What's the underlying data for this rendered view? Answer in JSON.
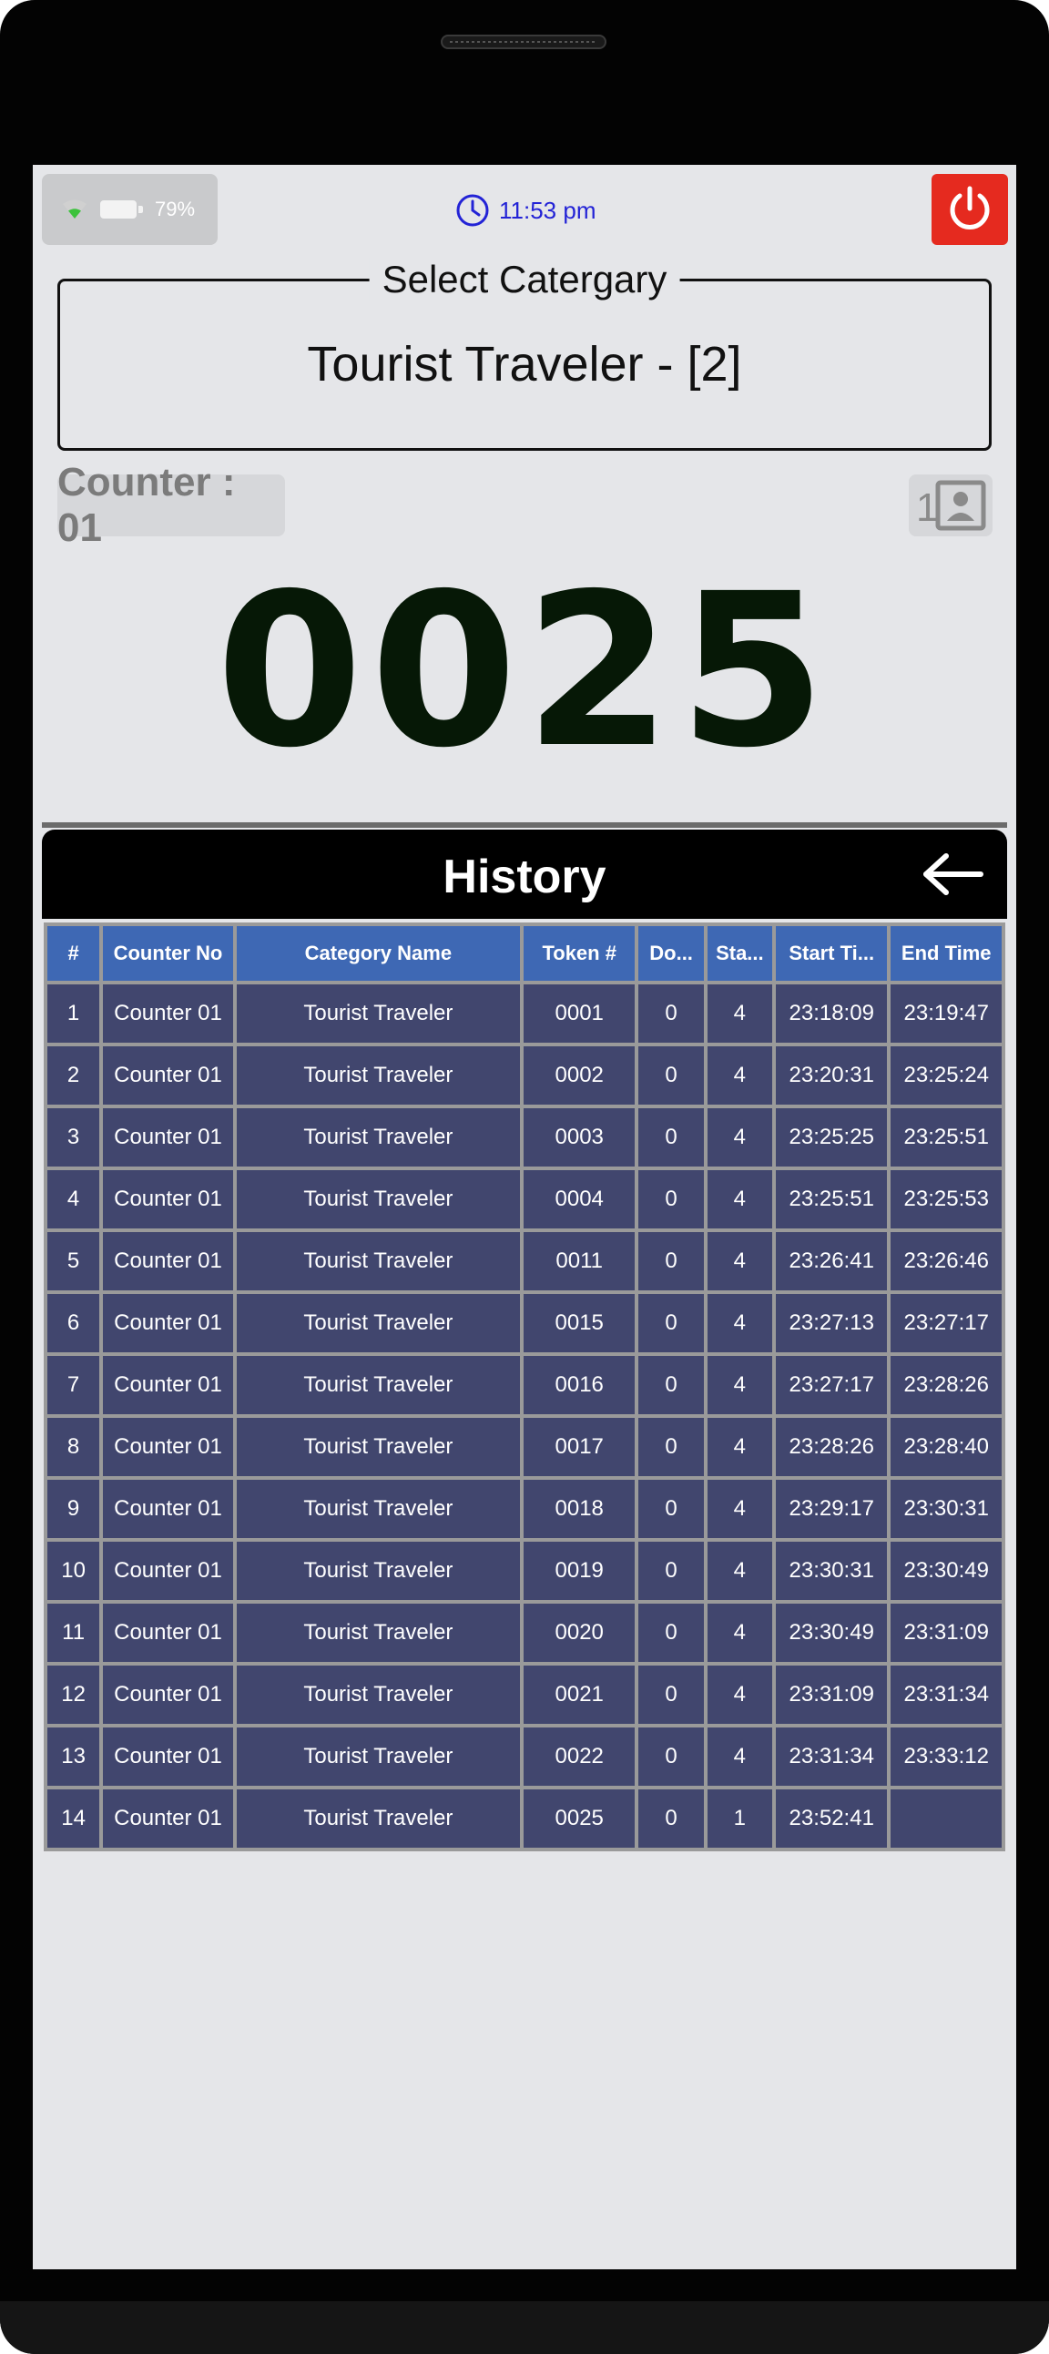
{
  "status": {
    "battery_pct": "79%"
  },
  "clock": {
    "time": "11:53 pm"
  },
  "category": {
    "legend": "Select Catergary",
    "value": "Tourist Traveler  - [2]"
  },
  "counter": {
    "label": "Counter : 01"
  },
  "profile": {
    "badge": "1"
  },
  "token": {
    "current": "0025"
  },
  "history": {
    "title": "History",
    "columns": [
      "#",
      "Counter  No",
      "Category  Name",
      "Token  #",
      "Do...",
      "Sta...",
      "Start  Ti...",
      "End  Time"
    ],
    "rows": [
      [
        "1",
        "Counter  01",
        "Tourist  Traveler",
        "0001",
        "0",
        "4",
        "23:18:09",
        "23:19:47"
      ],
      [
        "2",
        "Counter  01",
        "Tourist  Traveler",
        "0002",
        "0",
        "4",
        "23:20:31",
        "23:25:24"
      ],
      [
        "3",
        "Counter  01",
        "Tourist  Traveler",
        "0003",
        "0",
        "4",
        "23:25:25",
        "23:25:51"
      ],
      [
        "4",
        "Counter  01",
        "Tourist  Traveler",
        "0004",
        "0",
        "4",
        "23:25:51",
        "23:25:53"
      ],
      [
        "5",
        "Counter  01",
        "Tourist  Traveler",
        "0011",
        "0",
        "4",
        "23:26:41",
        "23:26:46"
      ],
      [
        "6",
        "Counter  01",
        "Tourist  Traveler",
        "0015",
        "0",
        "4",
        "23:27:13",
        "23:27:17"
      ],
      [
        "7",
        "Counter  01",
        "Tourist  Traveler",
        "0016",
        "0",
        "4",
        "23:27:17",
        "23:28:26"
      ],
      [
        "8",
        "Counter  01",
        "Tourist  Traveler",
        "0017",
        "0",
        "4",
        "23:28:26",
        "23:28:40"
      ],
      [
        "9",
        "Counter  01",
        "Tourist  Traveler",
        "0018",
        "0",
        "4",
        "23:29:17",
        "23:30:31"
      ],
      [
        "10",
        "Counter  01",
        "Tourist  Traveler",
        "0019",
        "0",
        "4",
        "23:30:31",
        "23:30:49"
      ],
      [
        "11",
        "Counter  01",
        "Tourist  Traveler",
        "0020",
        "0",
        "4",
        "23:30:49",
        "23:31:09"
      ],
      [
        "12",
        "Counter  01",
        "Tourist  Traveler",
        "0021",
        "0",
        "4",
        "23:31:09",
        "23:31:34"
      ],
      [
        "13",
        "Counter  01",
        "Tourist  Traveler",
        "0022",
        "0",
        "4",
        "23:31:34",
        "23:33:12"
      ],
      [
        "14",
        "Counter  01",
        "Tourist  Traveler",
        "0025",
        "0",
        "1",
        "23:52:41",
        ""
      ]
    ]
  },
  "icons": {
    "wifi": "wifi-icon",
    "battery": "battery-icon",
    "clock": "clock-icon",
    "power": "power-icon",
    "profile": "contact-card-icon",
    "back": "arrow-left-icon"
  },
  "colors": {
    "accent_blue": "#2323d6",
    "power_red": "#e52a1f",
    "table_header": "#3e68b4",
    "table_row": "#41466e",
    "token_text": "#061806"
  }
}
